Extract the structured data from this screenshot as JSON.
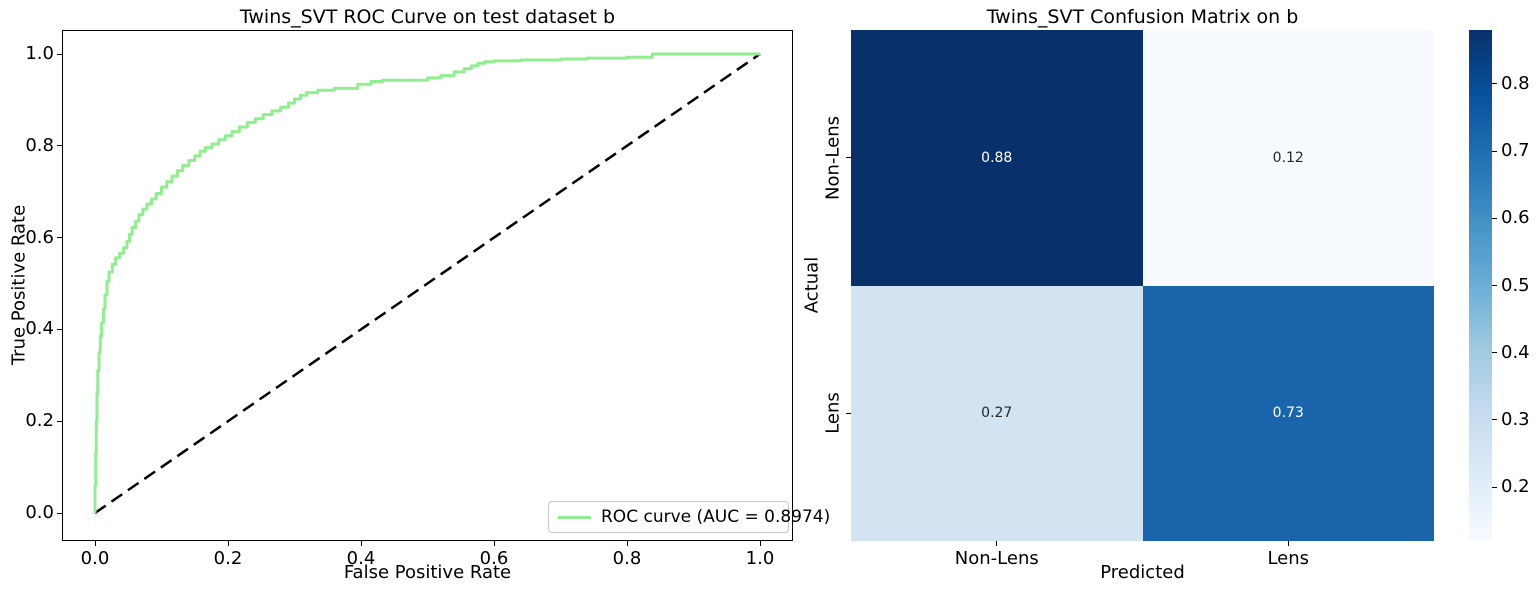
{
  "page": {
    "background": "#ffffff",
    "text_color": "#000000"
  },
  "chart_data": [
    {
      "type": "line",
      "title": "Twins_SVT ROC Curve on test dataset b",
      "xlabel": "False Positive Rate",
      "ylabel": "True Positive Rate",
      "xlim": [
        0.0,
        1.0
      ],
      "ylim": [
        0.0,
        1.0
      ],
      "x_ticks": [
        0.0,
        0.2,
        0.4,
        0.6,
        0.8,
        1.0
      ],
      "y_ticks": [
        0.0,
        0.2,
        0.4,
        0.6,
        0.8,
        1.0
      ],
      "grid": false,
      "legend_position": "lower right",
      "auc": "0.8974",
      "series": [
        {
          "name": "ROC curve (AUC = 0.8974)",
          "color": "#90ee90",
          "line_style": "solid",
          "step": true,
          "points": [
            [
              0.0,
              0.0
            ],
            [
              0.001,
              0.06
            ],
            [
              0.002,
              0.13
            ],
            [
              0.003,
              0.2
            ],
            [
              0.004,
              0.26
            ],
            [
              0.006,
              0.31
            ],
            [
              0.008,
              0.35
            ],
            [
              0.01,
              0.385
            ],
            [
              0.013,
              0.415
            ],
            [
              0.015,
              0.445
            ],
            [
              0.018,
              0.475
            ],
            [
              0.021,
              0.505
            ],
            [
              0.026,
              0.525
            ],
            [
              0.031,
              0.542
            ],
            [
              0.037,
              0.556
            ],
            [
              0.043,
              0.566
            ],
            [
              0.048,
              0.578
            ],
            [
              0.052,
              0.592
            ],
            [
              0.056,
              0.607
            ],
            [
              0.061,
              0.622
            ],
            [
              0.066,
              0.636
            ],
            [
              0.072,
              0.65
            ],
            [
              0.078,
              0.662
            ],
            [
              0.085,
              0.673
            ],
            [
              0.092,
              0.684
            ],
            [
              0.1,
              0.696
            ],
            [
              0.108,
              0.71
            ],
            [
              0.116,
              0.722
            ],
            [
              0.124,
              0.734
            ],
            [
              0.132,
              0.746
            ],
            [
              0.141,
              0.757
            ],
            [
              0.15,
              0.768
            ],
            [
              0.158,
              0.778
            ],
            [
              0.166,
              0.788
            ],
            [
              0.176,
              0.796
            ],
            [
              0.186,
              0.804
            ],
            [
              0.196,
              0.813
            ],
            [
              0.206,
              0.822
            ],
            [
              0.217,
              0.831
            ],
            [
              0.229,
              0.841
            ],
            [
              0.241,
              0.851
            ],
            [
              0.253,
              0.859
            ],
            [
              0.266,
              0.868
            ],
            [
              0.279,
              0.876
            ],
            [
              0.291,
              0.884
            ],
            [
              0.3,
              0.893
            ],
            [
              0.309,
              0.902
            ],
            [
              0.318,
              0.91
            ],
            [
              0.335,
              0.916
            ],
            [
              0.36,
              0.921
            ],
            [
              0.395,
              0.925
            ],
            [
              0.415,
              0.934
            ],
            [
              0.432,
              0.94
            ],
            [
              0.5,
              0.943
            ],
            [
              0.52,
              0.948
            ],
            [
              0.54,
              0.953
            ],
            [
              0.555,
              0.961
            ],
            [
              0.566,
              0.968
            ],
            [
              0.576,
              0.974
            ],
            [
              0.586,
              0.98
            ],
            [
              0.6,
              0.983
            ],
            [
              0.64,
              0.985
            ],
            [
              0.7,
              0.987
            ],
            [
              0.74,
              0.989
            ],
            [
              0.8,
              0.991
            ],
            [
              0.838,
              0.993
            ],
            [
              0.84,
              1.0
            ],
            [
              1.0,
              1.0
            ]
          ]
        },
        {
          "name": "chance-diagonal",
          "color": "#000000",
          "line_style": "dashed",
          "points": [
            [
              0.0,
              0.0
            ],
            [
              1.0,
              1.0
            ]
          ]
        }
      ]
    },
    {
      "type": "heatmap",
      "title": "Twins_SVT Confusion Matrix on b",
      "xlabel": "Predicted",
      "ylabel": "Actual",
      "x_categories": [
        "Non-Lens",
        "Lens"
      ],
      "y_categories": [
        "Non-Lens",
        "Lens"
      ],
      "values": [
        [
          0.88,
          0.12
        ],
        [
          0.27,
          0.73
        ]
      ],
      "cell_colors": [
        [
          "#08306b",
          "#f7fbff"
        ],
        [
          "#d2e3f2",
          "#1a64ab"
        ]
      ],
      "cell_text_colors": [
        [
          "#ffffff",
          "#262626"
        ],
        [
          "#262626",
          "#ffffff"
        ]
      ],
      "colormap": "Blues",
      "colorbar": {
        "vmin": 0.12,
        "vmax": 0.88,
        "ticks": [
          0.8,
          0.7,
          0.6,
          0.5,
          0.4,
          0.3,
          0.2
        ],
        "gradient": [
          "#f7fbff",
          "#deebf7",
          "#c6dbef",
          "#9ecae1",
          "#6baed6",
          "#4292c6",
          "#2171b5",
          "#08519c",
          "#08306b"
        ]
      }
    }
  ]
}
